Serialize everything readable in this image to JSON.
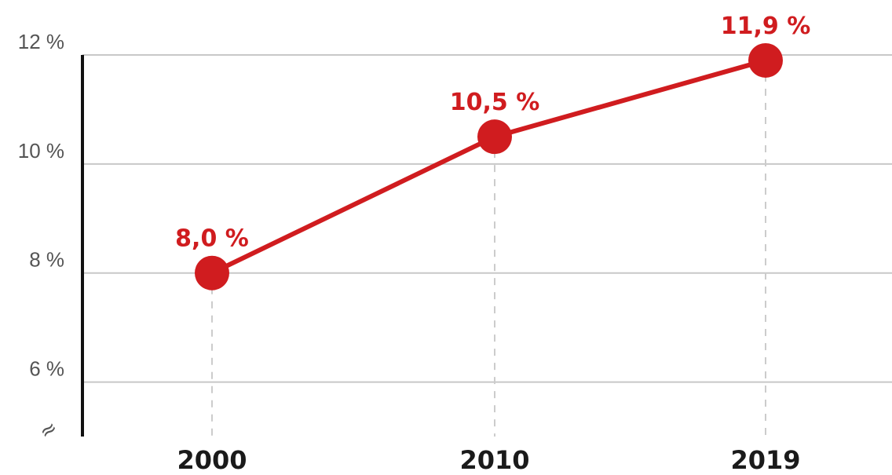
{
  "chart_data": {
    "type": "line",
    "title": "",
    "xlabel": "",
    "ylabel": "",
    "categories": [
      "2000",
      "2010",
      "2019"
    ],
    "series": [
      {
        "values": [
          8.0,
          10.5,
          11.9
        ],
        "data_labels": [
          "8,0 %",
          "10,5 %",
          "11,9 %"
        ]
      }
    ],
    "ylim": [
      5,
      12
    ],
    "y_ticks": [
      6,
      8,
      10,
      12
    ],
    "y_tick_labels": [
      "6 %",
      "8 %",
      "10 %",
      "12 %"
    ],
    "axis_break_symbol": "≈",
    "grid": true,
    "legend": "none",
    "colors": {
      "line": "#d01c1f",
      "grid": "#c8c8c8",
      "axis": "#111111",
      "dropline": "#cccccc",
      "text": "#555555"
    }
  }
}
